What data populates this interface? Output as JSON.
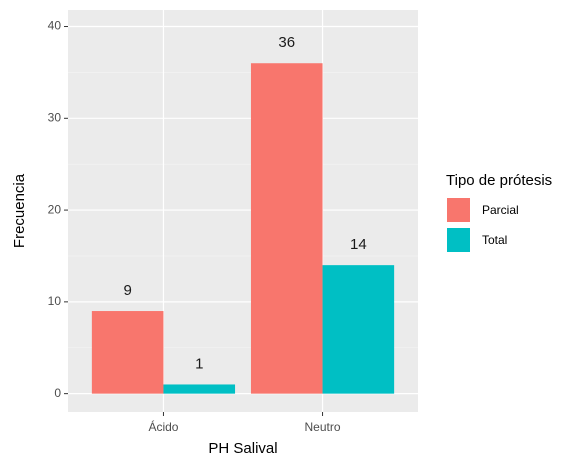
{
  "chart_data": {
    "type": "bar",
    "x_label": "PH Salival",
    "y_label": "Frecuencia",
    "categories": [
      "Ácido",
      "Neutro"
    ],
    "legend_title": "Tipo de prótesis",
    "series": [
      {
        "name": "Parcial",
        "color": "#F8766D",
        "values": [
          9,
          36
        ]
      },
      {
        "name": "Total",
        "color": "#00BFC4",
        "values": [
          1,
          14
        ]
      }
    ],
    "ylim": [
      -2,
      41.8
    ],
    "yticks": [
      0,
      10,
      20,
      30,
      40
    ],
    "grid": true,
    "legend": "right"
  }
}
